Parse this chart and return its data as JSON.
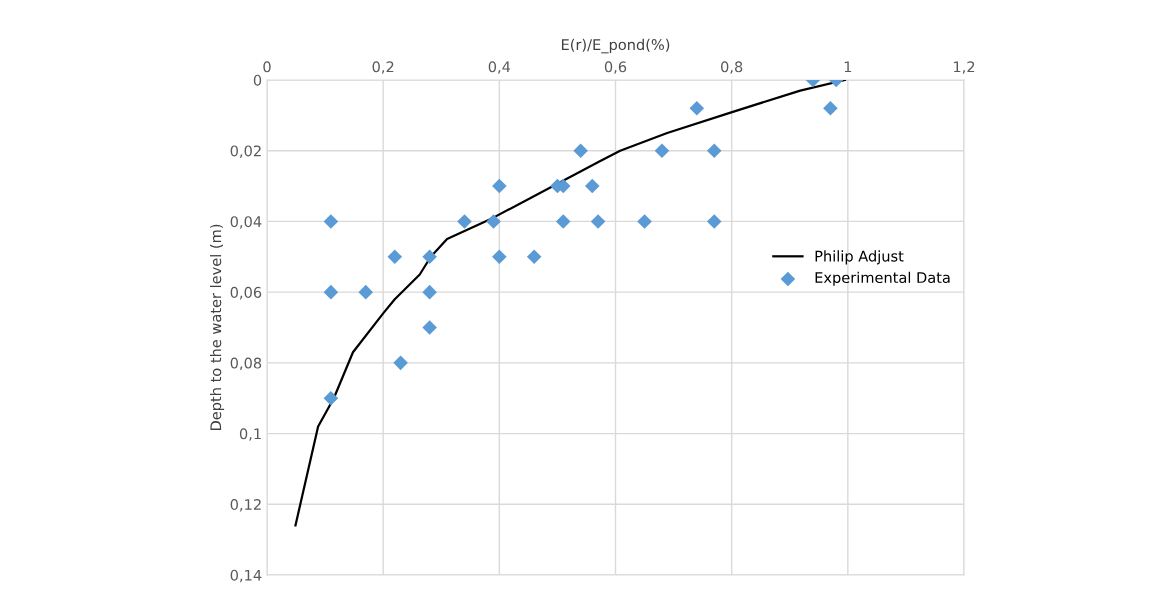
{
  "chart_data": {
    "type": "scatter",
    "xlabel": "E(r)/E_pond(%)",
    "ylabel": "Depth to the water level (m)",
    "xlim": [
      0,
      1.2
    ],
    "ylim": [
      0.14,
      0
    ],
    "xticks": [
      0,
      {
        "value": 0.2,
        "label": "0,2"
      },
      {
        "value": 0.4,
        "label": "0,4"
      },
      {
        "value": 0.6,
        "label": "0,6"
      },
      {
        "value": 0.8,
        "label": "0,8"
      },
      1,
      {
        "value": 1.2,
        "label": "1,2"
      }
    ],
    "yticks": [
      0,
      {
        "value": 0.02,
        "label": "0,02"
      },
      {
        "value": 0.04,
        "label": "0,04"
      },
      {
        "value": 0.06,
        "label": "0,06"
      },
      {
        "value": 0.08,
        "label": "0,08"
      },
      {
        "value": 0.1,
        "label": "0,1"
      },
      {
        "value": 0.12,
        "label": "0,12"
      },
      {
        "value": 0.14,
        "label": "0,14"
      }
    ],
    "grid": true,
    "legend": "right",
    "series": [
      {
        "name": "Philip Adjust",
        "type": "line",
        "color": "#000000",
        "marker": "none",
        "line_style": "solid",
        "x": [
          0.049,
          0.088,
          0.115,
          0.148,
          0.2,
          0.22,
          0.263,
          0.282,
          0.31,
          0.389,
          0.504,
          0.573,
          0.608,
          0.689,
          0.802,
          0.918,
          0.995
        ],
        "values": [
          0.126,
          0.098,
          0.09,
          0.077,
          0.066,
          0.062,
          0.055,
          0.05,
          0.045,
          0.039,
          0.029,
          0.023,
          0.02,
          0.015,
          0.009,
          0.003,
          0
        ]
      },
      {
        "name": "Experimental Data",
        "color": "#5b9bd5",
        "marker": "diamond",
        "x": [
          0.94,
          0.98,
          0.74,
          0.97,
          0.54,
          0.68,
          0.77,
          0.4,
          0.5,
          0.51,
          0.56,
          0.11,
          0.34,
          0.39,
          0.51,
          0.57,
          0.65,
          0.77,
          0.22,
          0.28,
          0.4,
          0.46,
          0.11,
          0.17,
          0.28,
          0.28,
          0.23,
          0.11
        ],
        "values": [
          0,
          0,
          0.008,
          0.008,
          0.02,
          0.02,
          0.02,
          0.03,
          0.03,
          0.03,
          0.03,
          0.04,
          0.04,
          0.04,
          0.04,
          0.04,
          0.04,
          0.04,
          0.05,
          0.05,
          0.05,
          0.05,
          0.06,
          0.06,
          0.06,
          0.07,
          0.08,
          0.09
        ]
      }
    ]
  }
}
